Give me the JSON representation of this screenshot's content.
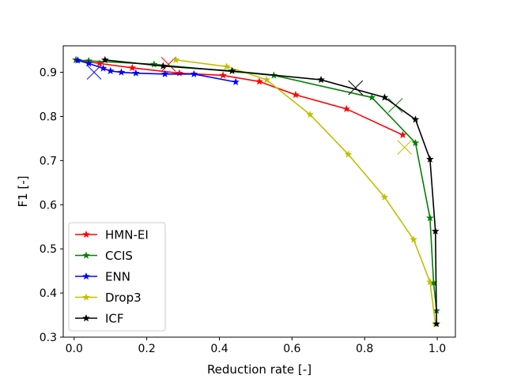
{
  "chart_data": {
    "type": "line",
    "title": "",
    "xlabel": "Reduction rate [-]",
    "ylabel": "F1 [-]",
    "xlim": [
      -0.03,
      1.05
    ],
    "ylim": [
      0.3,
      0.96
    ],
    "xticks": [
      0.0,
      0.2,
      0.4,
      0.6,
      0.8,
      1.0
    ],
    "xtick_labels": [
      "0.0",
      "0.2",
      "0.4",
      "0.6",
      "0.8",
      "1.0"
    ],
    "yticks": [
      0.3,
      0.4,
      0.5,
      0.6,
      0.7,
      0.8,
      0.9
    ],
    "ytick_labels": [
      "0.3",
      "0.4",
      "0.5",
      "0.6",
      "0.7",
      "0.8",
      "0.9"
    ],
    "grid": false,
    "legend_position": "lower-left",
    "series": [
      {
        "name": "HMN-EI",
        "color": "#ff0000",
        "marker": "star",
        "x": [
          0.005,
          0.07,
          0.16,
          0.29,
          0.41,
          0.51,
          0.61,
          0.75,
          0.905
        ],
        "y": [
          0.928,
          0.92,
          0.91,
          0.898,
          0.893,
          0.879,
          0.849,
          0.817,
          0.758
        ],
        "cross": {
          "x": 0.26,
          "y": 0.918
        }
      },
      {
        "name": "CCIS",
        "color": "#008000",
        "marker": "star",
        "x": [
          0.005,
          0.04,
          0.22,
          0.55,
          0.82,
          0.94,
          0.98,
          0.99,
          0.998
        ],
        "y": [
          0.928,
          0.926,
          0.918,
          0.893,
          0.843,
          0.74,
          0.57,
          0.423,
          0.36
        ],
        "cross": {
          "x": 0.885,
          "y": 0.825
        }
      },
      {
        "name": "ENN",
        "color": "#0000ff",
        "marker": "star",
        "x": [
          0.01,
          0.04,
          0.08,
          0.1,
          0.13,
          0.17,
          0.25,
          0.33,
          0.445
        ],
        "y": [
          0.927,
          0.92,
          0.909,
          0.903,
          0.9,
          0.898,
          0.896,
          0.896,
          0.878
        ],
        "cross": {
          "x": 0.055,
          "y": 0.9
        }
      },
      {
        "name": "Drop3",
        "color": "#bfbf00",
        "marker": "star",
        "x": [
          0.28,
          0.42,
          0.53,
          0.65,
          0.755,
          0.855,
          0.935,
          0.98,
          0.995
        ],
        "y": [
          0.928,
          0.913,
          0.883,
          0.804,
          0.714,
          0.617,
          0.521,
          0.425,
          0.33
        ],
        "cross": {
          "x": 0.91,
          "y": 0.73
        }
      },
      {
        "name": "ICF",
        "color": "#000000",
        "marker": "star",
        "x": [
          0.085,
          0.245,
          0.435,
          0.68,
          0.855,
          0.94,
          0.98,
          0.995,
          0.998
        ],
        "y": [
          0.928,
          0.914,
          0.903,
          0.883,
          0.843,
          0.793,
          0.703,
          0.54,
          0.33
        ],
        "cross": {
          "x": 0.775,
          "y": 0.865
        }
      }
    ]
  }
}
